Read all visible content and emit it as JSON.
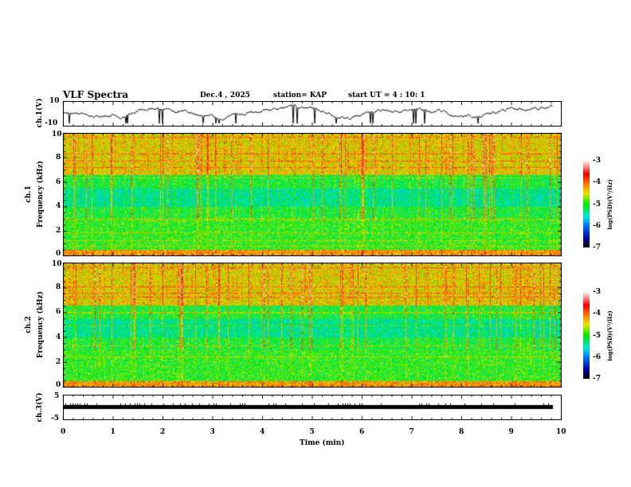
{
  "header": {
    "title": "VLF Spectra",
    "date": "Dec.4 , 2025",
    "station": "station= KAP",
    "start": "start  UT =   4 : 10: 1"
  },
  "chart_data": [
    {
      "type": "line",
      "name": "ch1 waveform",
      "ylabel": "ch.1(V)",
      "ylim": [
        -10,
        10
      ],
      "yticks": [
        "10",
        "-10"
      ],
      "xlim": [
        0,
        10
      ]
    },
    {
      "type": "heatmap",
      "name": "ch1 spectrogram",
      "ylabel_ch": "ch.1",
      "ylabel_freq": "Frequency (kHz)",
      "ylim": [
        0,
        10
      ],
      "yticks": [
        "10",
        "8",
        "6",
        "4",
        "2",
        "0"
      ],
      "xlim": [
        0,
        10
      ],
      "colorbar": {
        "label": "log(PSD)(V²/Hz)",
        "range": [
          -7,
          -3
        ],
        "ticks": [
          "-3",
          "-4",
          "-5",
          "-6",
          "-7"
        ]
      }
    },
    {
      "type": "heatmap",
      "name": "ch2 spectrogram",
      "ylabel_ch": "ch.2",
      "ylabel_freq": "Frequency (kHz)",
      "ylim": [
        0,
        10
      ],
      "yticks": [
        "10",
        "8",
        "6",
        "4",
        "2",
        "0"
      ],
      "xlim": [
        0,
        10
      ],
      "colorbar": {
        "label": "log(PSD)(V²/Hz)",
        "range": [
          -7,
          -3
        ],
        "ticks": [
          "-3",
          "-4",
          "-5",
          "-6",
          "-7"
        ]
      }
    },
    {
      "type": "line",
      "name": "ch3 waveform",
      "ylabel": "ch.3(V)",
      "ylim": [
        -5,
        5
      ],
      "yticks": [
        "5",
        "-5"
      ],
      "xlim": [
        0,
        10
      ],
      "xlabel": "Time  (min)",
      "xticks": [
        "0",
        "1",
        "2",
        "3",
        "4",
        "5",
        "6",
        "7",
        "8",
        "9",
        "10"
      ]
    }
  ]
}
